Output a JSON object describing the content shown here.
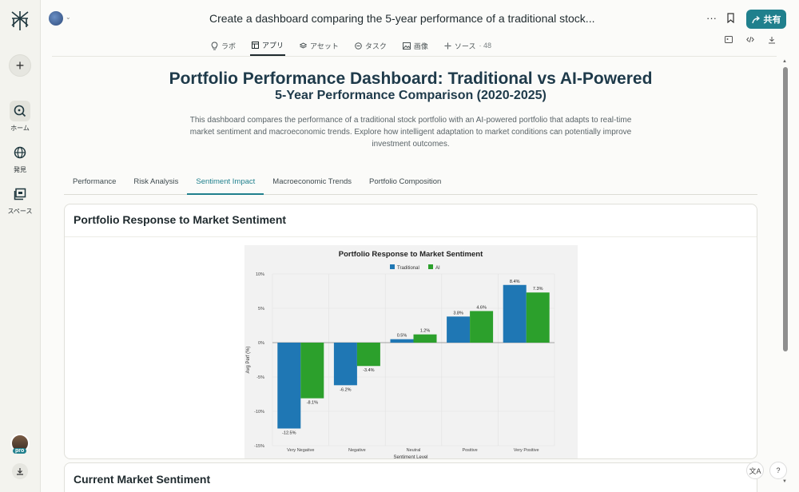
{
  "rail": {
    "items": [
      {
        "label": "ホーム"
      },
      {
        "label": "発見"
      },
      {
        "label": "スペース"
      }
    ],
    "pro_badge": "pro"
  },
  "header": {
    "title": "Create a dashboard comparing the 5-year performance of a traditional stock...",
    "share_label": "共有",
    "more_label": "···",
    "tabs": [
      {
        "label": "ラボ"
      },
      {
        "label": "アプリ"
      },
      {
        "label": "アセット"
      },
      {
        "label": "タスク"
      },
      {
        "label": "画像"
      },
      {
        "label": "ソース",
        "count": "· 48"
      }
    ]
  },
  "dashboard": {
    "title": "Portfolio Performance Dashboard: Traditional vs AI-Powered",
    "subtitle": "5-Year Performance Comparison (2020-2025)",
    "description": "This dashboard compares the performance of a traditional stock portfolio with an AI-powered portfolio that adapts to real-time market sentiment and macroeconomic trends. Explore how intelligent adaptation to market conditions can potentially improve investment outcomes.",
    "tabs": [
      "Performance",
      "Risk Analysis",
      "Sentiment Impact",
      "Macroeconomic Trends",
      "Portfolio Composition"
    ],
    "active_tab": 2,
    "card_title": "Portfolio Response to Market Sentiment",
    "next_card_title": "Current Market Sentiment"
  },
  "chart_data": {
    "type": "bar",
    "title": "Portfolio Response to Market Sentiment",
    "categories": [
      "Very Negative",
      "Negative",
      "Neutral",
      "Positive",
      "Very Positive"
    ],
    "series": [
      {
        "name": "Traditional",
        "values": [
          -12.5,
          -6.2,
          0.5,
          3.8,
          8.4
        ],
        "labels": [
          "-12.5%",
          "-6.2%",
          "0.5%",
          "3.8%",
          "8.4%"
        ],
        "color": "#1f77b4"
      },
      {
        "name": "AI",
        "values": [
          -8.1,
          -3.4,
          1.2,
          4.6,
          7.3
        ],
        "labels": [
          "-8.1%",
          "-3.4%",
          "1.2%",
          "4.6%",
          "7.3%"
        ],
        "color": "#2ca02c"
      }
    ],
    "ylabel": "Avg Perf (%)",
    "xlabel": "Sentiment Level",
    "ylim": [
      -15,
      10
    ],
    "yticks": [
      "10%",
      "5%",
      "0%",
      "-5%",
      "-10%",
      "-15%"
    ],
    "ytick_values": [
      10,
      5,
      0,
      -5,
      -10,
      -15
    ],
    "grid": true,
    "legend": "top-center"
  },
  "floating": {
    "translate": "文A",
    "help": "?"
  }
}
